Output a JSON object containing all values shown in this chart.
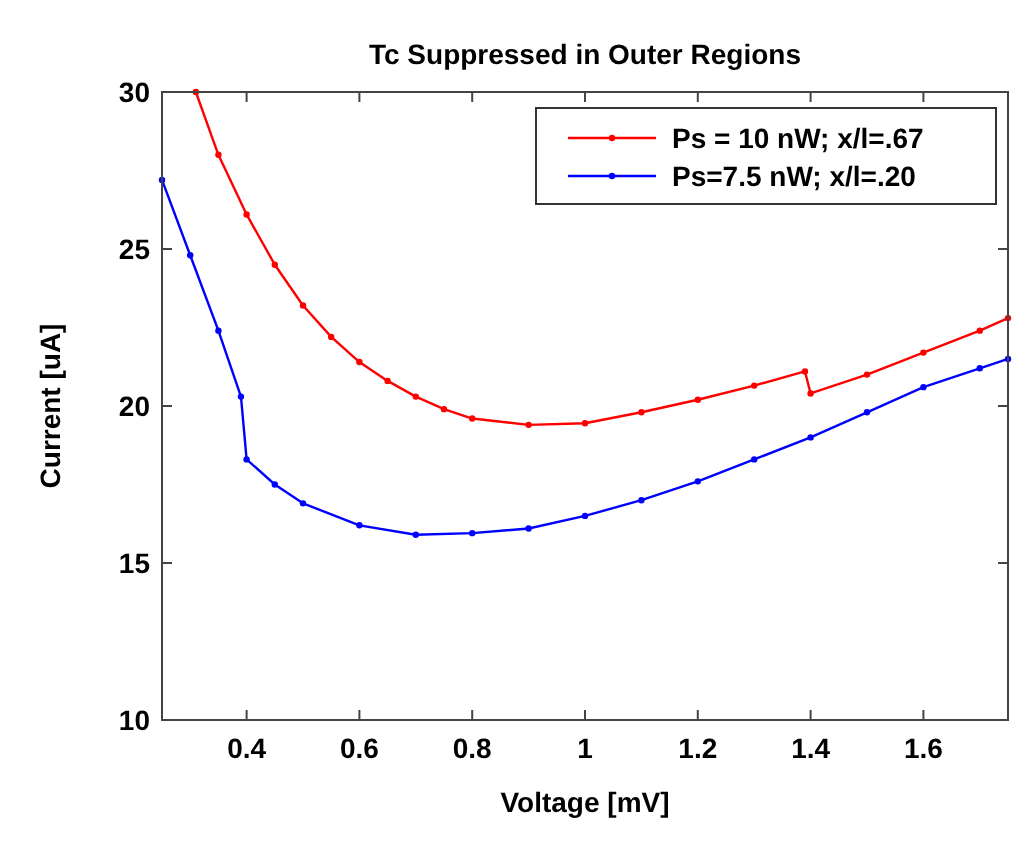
{
  "chart_data": {
    "type": "line",
    "title": "Tc Suppressed in Outer Regions",
    "xlabel": "Voltage [mV]",
    "ylabel": "Current [uA]",
    "xlim": [
      0.25,
      1.75
    ],
    "ylim": [
      10,
      30
    ],
    "xticks": [
      0.4,
      0.6,
      0.8,
      1,
      1.2,
      1.4,
      1.6
    ],
    "yticks": [
      10,
      15,
      20,
      25,
      30
    ],
    "legend": "top right",
    "marker": "circle",
    "line_style": "solid",
    "grid": false,
    "series": [
      {
        "name": "Ps = 10 nW; x/l=.67",
        "color": "#ff0000",
        "x": [
          0.31,
          0.35,
          0.4,
          0.45,
          0.5,
          0.55,
          0.6,
          0.65,
          0.7,
          0.75,
          0.8,
          0.9,
          1.0,
          1.1,
          1.2,
          1.3,
          1.39,
          1.4,
          1.5,
          1.6,
          1.7,
          1.75
        ],
        "values": [
          30,
          28,
          26.1,
          24.5,
          23.2,
          22.2,
          21.4,
          20.8,
          20.3,
          19.9,
          19.6,
          19.4,
          19.45,
          19.8,
          20.2,
          20.65,
          21.1,
          20.4,
          21.0,
          21.7,
          22.4,
          22.8
        ]
      },
      {
        "name": "Ps=7.5 nW; x/l=.20",
        "color": "#0000ff",
        "x": [
          0.25,
          0.3,
          0.35,
          0.39,
          0.4,
          0.45,
          0.5,
          0.6,
          0.7,
          0.8,
          0.9,
          1.0,
          1.1,
          1.2,
          1.3,
          1.4,
          1.5,
          1.6,
          1.7,
          1.75
        ],
        "values": [
          27.2,
          24.8,
          22.4,
          20.3,
          18.3,
          17.5,
          16.9,
          16.2,
          15.9,
          15.95,
          16.1,
          16.5,
          17.0,
          17.6,
          18.3,
          19.0,
          19.8,
          20.6,
          21.2,
          21.5
        ]
      }
    ]
  }
}
